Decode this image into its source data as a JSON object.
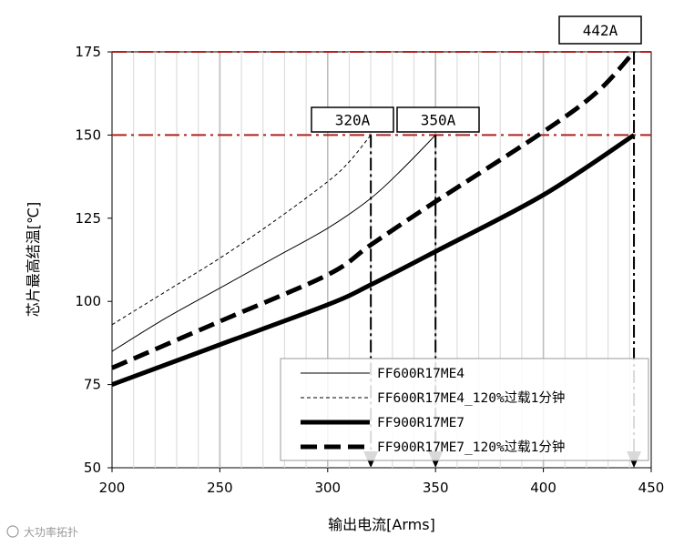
{
  "chart_data": {
    "type": "line",
    "xlabel": "输出电流[Arms]",
    "ylabel": "芯片最高结温[℃]",
    "xlim": [
      200,
      450
    ],
    "ylim": [
      50,
      175
    ],
    "xticks": [
      200,
      250,
      300,
      350,
      400,
      450
    ],
    "yticks": [
      50,
      75,
      100,
      125,
      150,
      175
    ],
    "grid": "vertical",
    "legend_position": "bottom-right",
    "series": [
      {
        "name": "FF600R17ME4",
        "style": "thin-solid",
        "x": [
          200,
          225,
          250,
          275,
          300,
          320,
          335,
          350
        ],
        "y": [
          85,
          95,
          104,
          113,
          122,
          131,
          140,
          150
        ]
      },
      {
        "name": "FF600R17ME4_120%过载1分钟",
        "style": "thin-dashed",
        "x": [
          200,
          225,
          250,
          275,
          300,
          310,
          320
        ],
        "y": [
          93,
          103,
          113,
          124,
          136,
          142,
          150
        ]
      },
      {
        "name": "FF900R17ME7",
        "style": "thick-solid",
        "x": [
          200,
          250,
          300,
          320,
          350,
          400,
          442
        ],
        "y": [
          75,
          87,
          99,
          105,
          115,
          132,
          150
        ]
      },
      {
        "name": "FF900R17ME7_120%过载1分钟",
        "style": "thick-dashed",
        "x": [
          200,
          250,
          300,
          320,
          350,
          400,
          425,
          442
        ],
        "y": [
          80,
          94,
          108,
          117,
          130,
          151,
          163,
          175
        ]
      }
    ],
    "reference_lines": {
      "horizontal": [
        150,
        175
      ],
      "vertical": [
        320,
        350,
        442
      ]
    },
    "annotations": [
      {
        "label": "320A",
        "x": 320,
        "y": 150
      },
      {
        "label": "350A",
        "x": 350,
        "y": 150
      },
      {
        "label": "442A",
        "x": 442,
        "y": 175
      }
    ],
    "colors": {
      "reference_line": "#b22222",
      "series": "#000000"
    }
  },
  "watermark": "大功率拓扑"
}
